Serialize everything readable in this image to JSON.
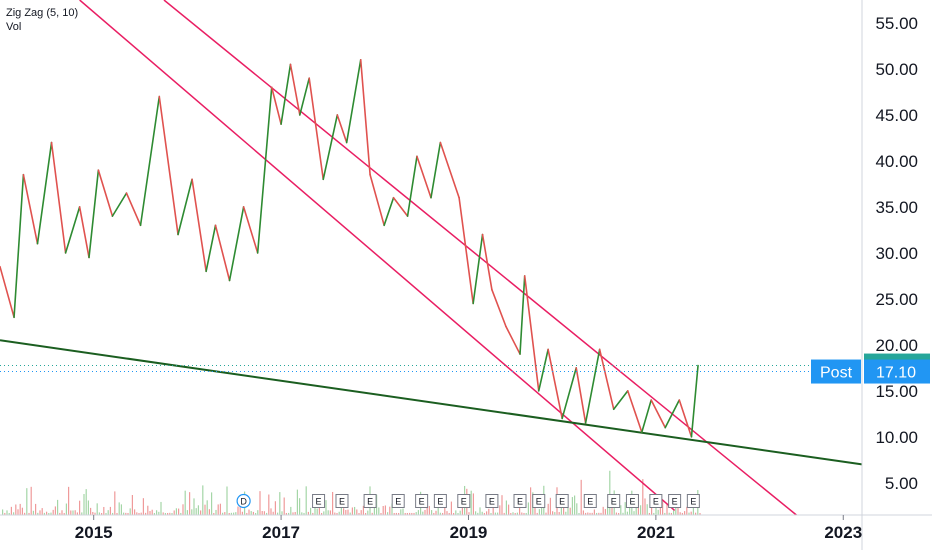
{
  "legend": {
    "indicator": "Zig Zag (5, 10)",
    "volume": "Vol"
  },
  "colors": {
    "up": "#2e8b32",
    "down": "#e0524f",
    "channel": "#e91e63",
    "trendline": "#1b5e20",
    "last_price_bg": "#26a69a",
    "post_bg": "#2196f3",
    "gridline": "#e0e3eb",
    "volume_up": "#a5d6a7",
    "volume_down": "#ef9a9a"
  },
  "badges": {
    "last_price": "17.75",
    "post_label": "Post",
    "post_price": "17.10"
  },
  "chart_data": {
    "type": "line",
    "title": "",
    "xlabel": "",
    "ylabel": "",
    "x_ticks": [
      "2015",
      "2017",
      "2019",
      "2021",
      "2023"
    ],
    "y_ticks": [
      "5.00",
      "10.00",
      "15.00",
      "20.00",
      "25.00",
      "30.00",
      "35.00",
      "40.00",
      "45.00",
      "50.00",
      "55.00"
    ],
    "xlim": [
      2014.0,
      2023.2
    ],
    "ylim": [
      1.5,
      57.5
    ],
    "series": [
      {
        "x": [
          2014.0,
          2014.15,
          2014.25,
          2014.4,
          2014.55,
          2014.7,
          2014.85,
          2014.95,
          2015.05,
          2015.2,
          2015.35,
          2015.5,
          2015.7,
          2015.9,
          2016.05,
          2016.2,
          2016.3,
          2016.45,
          2016.6,
          2016.75,
          2016.9,
          2017.0,
          2017.1,
          2017.2,
          2017.3,
          2017.45,
          2017.6,
          2017.7,
          2017.85,
          2017.95,
          2018.1,
          2018.2,
          2018.35,
          2018.45,
          2018.6,
          2018.7,
          2018.9,
          2019.05,
          2019.15,
          2019.25,
          2019.4,
          2019.55,
          2019.6,
          2019.75,
          2019.85,
          2020.0,
          2020.15,
          2020.25,
          2020.4,
          2020.55,
          2020.7,
          2020.85,
          2020.95,
          2021.1,
          2021.25,
          2021.38,
          2021.45
        ],
        "y": [
          28.5,
          23.0,
          38.5,
          31.0,
          42.0,
          30.0,
          35.0,
          29.5,
          39.0,
          34.0,
          36.5,
          33.0,
          47.0,
          32.0,
          38.0,
          28.0,
          33.0,
          27.0,
          35.0,
          30.0,
          48.0,
          44.0,
          50.5,
          45.0,
          49.0,
          38.0,
          45.0,
          42.0,
          51.0,
          38.5,
          33.0,
          36.0,
          34.0,
          40.5,
          36.0,
          42.0,
          36.0,
          24.5,
          32.0,
          26.0,
          22.0,
          19.0,
          27.5,
          15.0,
          19.5,
          12.0,
          17.5,
          11.5,
          19.5,
          13.0,
          15.0,
          10.5,
          14.0,
          11.0,
          14.0,
          10.0,
          17.75
        ]
      }
    ],
    "annotations": [
      {
        "label": "D",
        "x": 2016.6
      },
      {
        "label": "E",
        "x": 2017.4
      },
      {
        "label": "E",
        "x": 2017.65
      },
      {
        "label": "E",
        "x": 2017.95
      },
      {
        "label": "E",
        "x": 2018.25
      },
      {
        "label": "E",
        "x": 2018.5
      },
      {
        "label": "E",
        "x": 2018.7
      },
      {
        "label": "E",
        "x": 2018.95
      },
      {
        "label": "E",
        "x": 2019.25
      },
      {
        "label": "E",
        "x": 2019.55
      },
      {
        "label": "E",
        "x": 2019.75
      },
      {
        "label": "E",
        "x": 2020.0
      },
      {
        "label": "E",
        "x": 2020.3
      },
      {
        "label": "E",
        "x": 2020.55
      },
      {
        "label": "E",
        "x": 2020.75
      },
      {
        "label": "E",
        "x": 2021.0
      },
      {
        "label": "E",
        "x": 2021.2
      },
      {
        "label": "E",
        "x": 2021.4
      }
    ]
  }
}
